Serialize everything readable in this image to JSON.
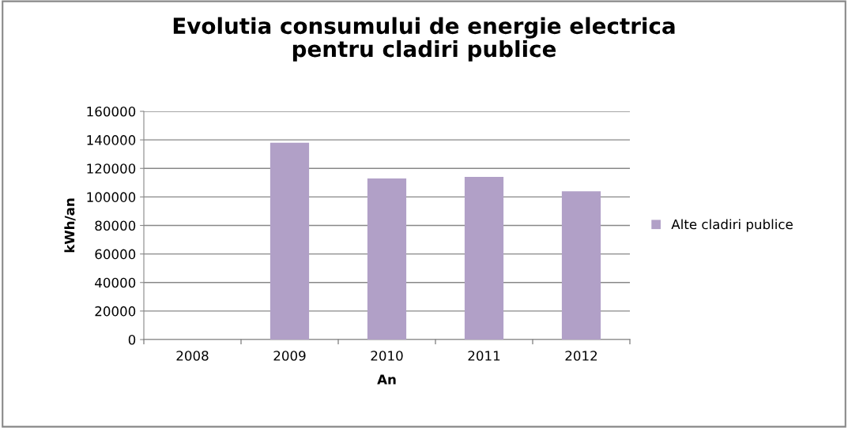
{
  "chart_data": {
    "type": "bar",
    "title": "Evolutia consumului de energie electrica\npentru cladiri publice",
    "xlabel": "An",
    "ylabel": "kWh/an",
    "categories": [
      "2008",
      "2009",
      "2010",
      "2011",
      "2012"
    ],
    "series": [
      {
        "name": "Alte cladiri publice",
        "color": "#b1a0c7",
        "values": [
          null,
          138000,
          113000,
          114000,
          104000
        ]
      }
    ],
    "ylim": [
      0,
      160000
    ],
    "yticks": [
      0,
      20000,
      40000,
      60000,
      80000,
      100000,
      120000,
      140000,
      160000
    ],
    "grid": "y",
    "legend": "right"
  }
}
